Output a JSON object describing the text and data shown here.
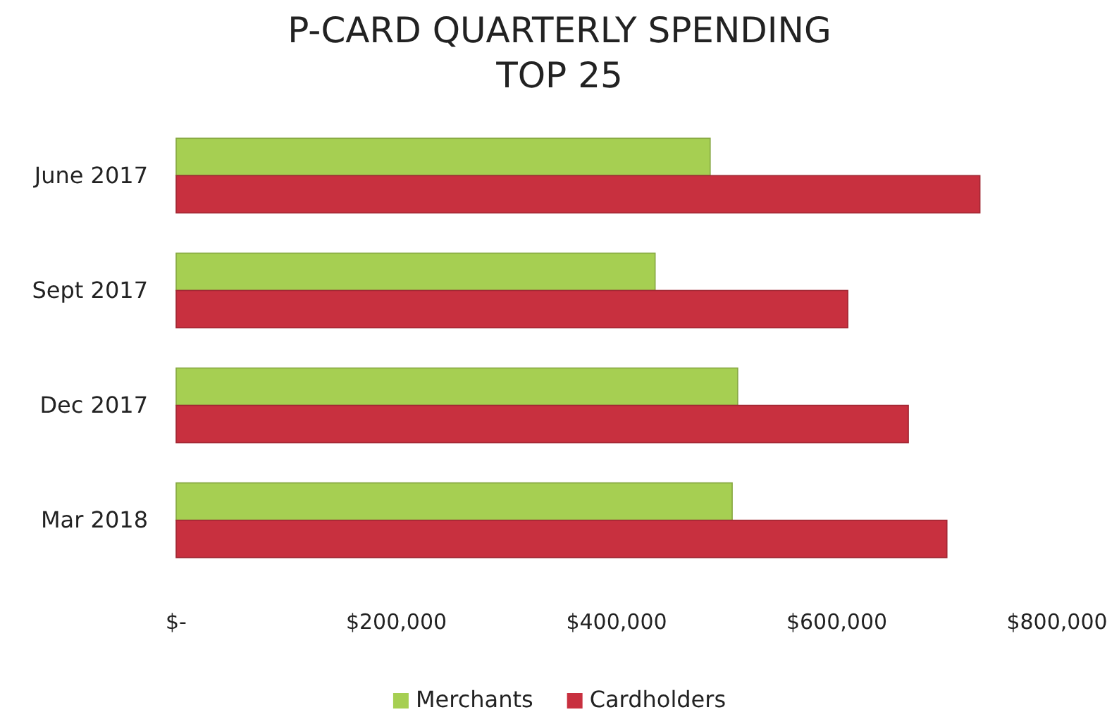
{
  "chart_data": {
    "type": "bar",
    "orientation": "horizontal",
    "title": "P-CARD QUARTERLY SPENDING\nTOP 25",
    "categories": [
      "June  2017",
      "Sept 2017",
      "Dec 2017",
      "Mar  2018"
    ],
    "series": [
      {
        "name": "Merchants",
        "color": "#a6cf52",
        "values": [
          485000,
          435000,
          510000,
          505000
        ]
      },
      {
        "name": "Cardholders",
        "color": "#c8303f",
        "values": [
          730000,
          610000,
          665000,
          700000
        ]
      }
    ],
    "xlim": [
      0,
      800000
    ],
    "xticks": [
      {
        "value": 0,
        "label": "$-"
      },
      {
        "value": 200000,
        "label": "$200,000"
      },
      {
        "value": 400000,
        "label": "$400,000"
      },
      {
        "value": 600000,
        "label": "$600,000"
      },
      {
        "value": 800000,
        "label": "$800,000"
      }
    ],
    "grid": false,
    "legend": "bottom"
  }
}
